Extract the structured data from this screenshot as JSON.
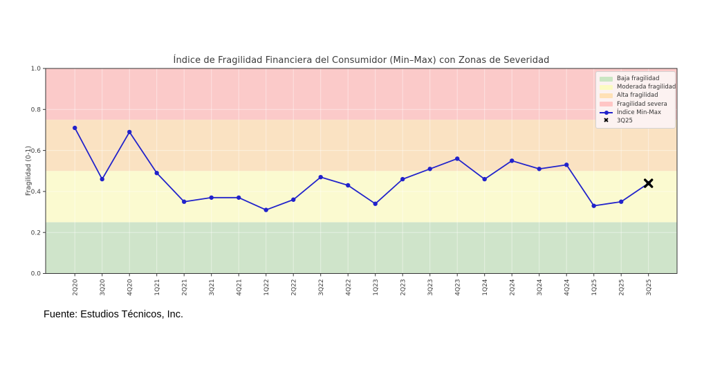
{
  "source_note": "Fuente: Estudios Técnicos, Inc.",
  "chart_data": {
    "type": "line",
    "title": "Índice de Fragilidad Financiera del Consumidor (Min–Max) con Zonas de Severidad",
    "xlabel": "",
    "ylabel": "Fragilidad (0-1)",
    "ylim": [
      0.0,
      1.0
    ],
    "yticks": [
      0.0,
      0.2,
      0.4,
      0.6,
      0.8,
      1.0
    ],
    "grid": true,
    "categories": [
      "2Q20",
      "3Q20",
      "4Q20",
      "1Q21",
      "2Q21",
      "3Q21",
      "4Q21",
      "1Q22",
      "2Q22",
      "3Q22",
      "4Q22",
      "1Q23",
      "2Q23",
      "3Q23",
      "4Q23",
      "1Q24",
      "2Q24",
      "3Q24",
      "4Q24",
      "1Q25",
      "2Q25",
      "3Q25"
    ],
    "series": [
      {
        "name": "Índice Min-Max",
        "color": "#2122cb",
        "values": [
          0.71,
          0.46,
          0.69,
          0.49,
          0.35,
          0.37,
          0.37,
          0.31,
          0.36,
          0.47,
          0.43,
          0.34,
          0.46,
          0.51,
          0.56,
          0.46,
          0.55,
          0.51,
          0.53,
          0.33,
          0.35,
          0.44
        ]
      }
    ],
    "highlight": {
      "label": "3Q25",
      "category": "3Q25",
      "value": 0.44,
      "marker": "X",
      "color": "#000000"
    },
    "zones": [
      {
        "label": "Baja fragilidad",
        "from": 0.0,
        "to": 0.25,
        "color": "#cfe4ca"
      },
      {
        "label": "Moderada fragilidad",
        "from": 0.25,
        "to": 0.5,
        "color": "#fbfad0"
      },
      {
        "label": "Alta fragilidad",
        "from": 0.5,
        "to": 0.75,
        "color": "#fae2c2"
      },
      {
        "label": "Fragilidad severa",
        "from": 0.75,
        "to": 1.0,
        "color": "#fbcac9"
      }
    ],
    "legend": {
      "position": "upper right"
    }
  }
}
